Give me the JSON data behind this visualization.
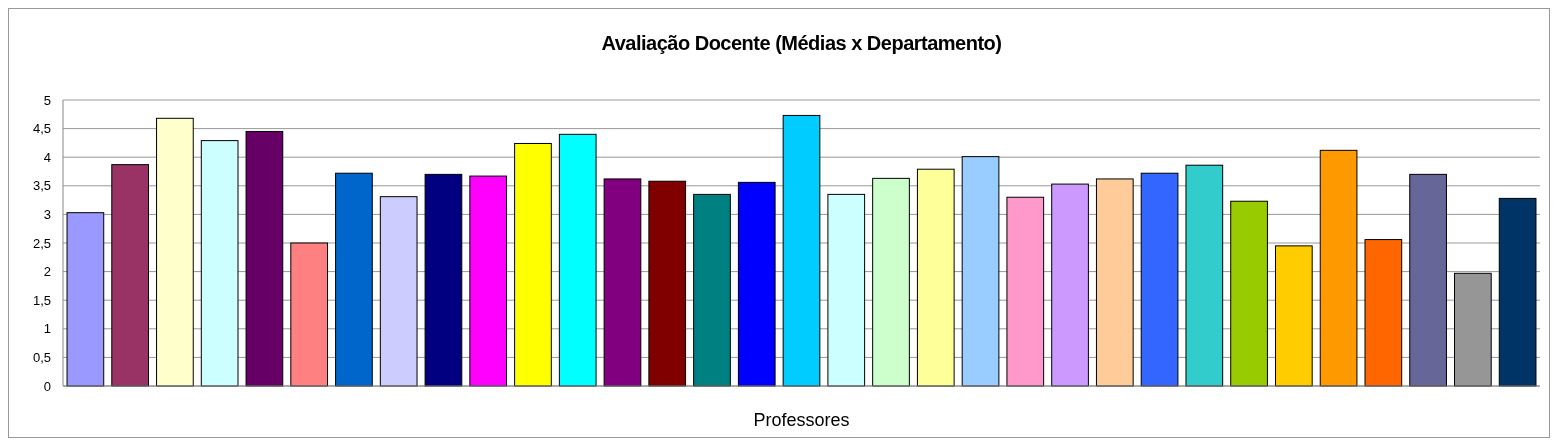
{
  "chart_data": {
    "type": "bar",
    "title": "Avaliação Docente (Médias x Departamento)",
    "xlabel": "Professores",
    "categories": [
      null,
      null,
      null,
      null,
      null,
      null,
      null,
      null,
      null,
      null,
      null,
      null,
      null,
      null,
      null,
      null,
      null,
      null,
      null,
      null,
      null,
      null,
      null,
      null,
      null,
      null,
      null,
      null,
      null,
      null,
      null,
      null,
      null
    ],
    "values": [
      3.03,
      3.87,
      4.68,
      4.29,
      4.45,
      2.5,
      3.72,
      3.31,
      3.7,
      3.67,
      4.24,
      4.4,
      3.62,
      3.58,
      3.35,
      3.56,
      4.73,
      3.35,
      3.63,
      3.79,
      4.01,
      3.3,
      3.53,
      3.62,
      3.72,
      3.86,
      3.23,
      2.45,
      4.12,
      2.56,
      3.7,
      1.97,
      3.28
    ],
    "colors": [
      "#9999ff",
      "#993366",
      "#ffffcc",
      "#ccffff",
      "#660066",
      "#ff8080",
      "#0066cc",
      "#ccccff",
      "#000080",
      "#ff00ff",
      "#ffff00",
      "#00ffff",
      "#800080",
      "#800000",
      "#008080",
      "#0000ff",
      "#00ccff",
      "#ccffff",
      "#ccffcc",
      "#ffff99",
      "#99ccff",
      "#ff99cc",
      "#cc99ff",
      "#ffcc99",
      "#3366ff",
      "#33cccc",
      "#99cc00",
      "#ffcc00",
      "#ff9900",
      "#ff6600",
      "#666699",
      "#969696",
      "#003366"
    ],
    "ylim": [
      0,
      5
    ],
    "yticks": [
      0,
      {
        "value": 0.5,
        "label": "0,5"
      },
      1,
      {
        "value": 1.5,
        "label": "1,5"
      },
      2,
      {
        "value": 2.5,
        "label": "2,5"
      },
      3,
      {
        "value": 3.5,
        "label": "3,5"
      },
      4,
      {
        "value": 4.5,
        "label": "4,5"
      },
      5
    ],
    "grid": "y",
    "tick_labels": "y"
  }
}
